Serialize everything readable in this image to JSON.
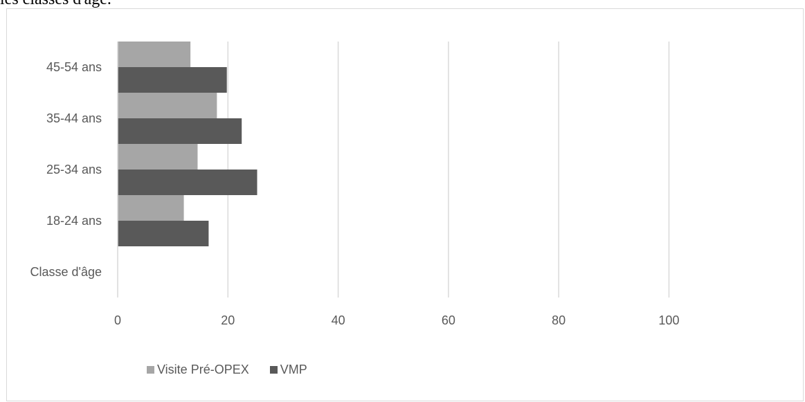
{
  "caption": "les classes d'âge.",
  "chart_data": {
    "type": "bar",
    "orientation": "horizontal",
    "categories": [
      "Classe d'âge",
      "18-24 ans",
      "25-34 ans",
      "35-44 ans",
      "45-54 ans"
    ],
    "series": [
      {
        "name": "Visite Pré-OPEX",
        "color": "#a6a6a6",
        "values": [
          0,
          12,
          14.5,
          18,
          13.2
        ]
      },
      {
        "name": "VMP",
        "color": "#595959",
        "values": [
          0,
          16.5,
          25.3,
          22.5,
          19.8
        ]
      }
    ],
    "x_ticks": [
      "0",
      "20",
      "40",
      "60",
      "80",
      "100"
    ],
    "xlim": [
      0,
      113
    ],
    "grid": true,
    "legend_position": "bottom-left"
  }
}
